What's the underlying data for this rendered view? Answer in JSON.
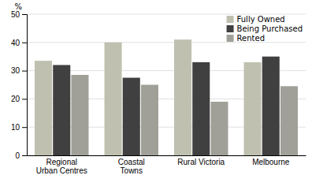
{
  "chart_data": {
    "type": "bar",
    "ylabel": "%",
    "categories": [
      "Regional\nUrban Centres",
      "Coastal\nTowns",
      "Rural Victoria",
      "Melbourne"
    ],
    "series": [
      {
        "name": "Fully Owned",
        "color": "#c0c0b0",
        "values": [
          33.5,
          40.0,
          41.0,
          33.0
        ]
      },
      {
        "name": "Being Purchased",
        "color": "#404040",
        "values": [
          32.0,
          27.5,
          33.0,
          35.0
        ]
      },
      {
        "name": "Rented",
        "color": "#a0a098",
        "values": [
          28.5,
          25.0,
          19.0,
          24.5
        ]
      }
    ],
    "ylim": [
      0,
      50
    ],
    "yticks": [
      0,
      10,
      20,
      30,
      40,
      50
    ],
    "grid": true,
    "legend": "upper right"
  }
}
